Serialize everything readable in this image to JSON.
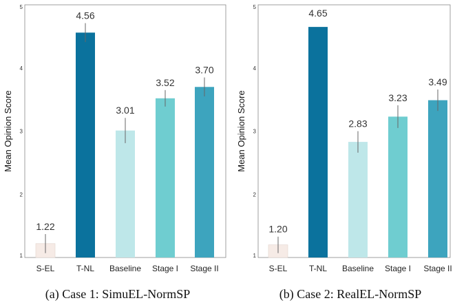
{
  "chart_data": [
    {
      "type": "bar",
      "caption": "(a) Case 1: SimuEL-NormSP",
      "ylabel": "Mean Opinion Score",
      "ylim": [
        1,
        5
      ],
      "yticks": [
        "1",
        "2",
        "3",
        "4",
        "5"
      ],
      "categories": [
        "S-EL",
        "T-NL",
        "Baseline",
        "Stage I",
        "Stage II"
      ],
      "values": [
        1.22,
        4.56,
        3.01,
        3.52,
        3.7
      ],
      "value_labels": [
        "1.22",
        "4.56",
        "3.01",
        "3.52",
        "3.70"
      ],
      "error": [
        0.15,
        0.15,
        0.2,
        0.13,
        0.15
      ],
      "colors": [
        "#f6ebe6",
        "#0b729d",
        "#bee7e9",
        "#6fcdd0",
        "#3da4be"
      ],
      "grid": false
    },
    {
      "type": "bar",
      "caption": "(b) Case 2: RealEL-NormSP",
      "ylabel": "Mean Opinion Score",
      "ylim": [
        1,
        5
      ],
      "yticks": [
        "1",
        "2",
        "3",
        "4",
        "5"
      ],
      "categories": [
        "S-EL",
        "T-NL",
        "Baseline",
        "Stage I",
        "Stage II"
      ],
      "values": [
        1.2,
        4.65,
        2.83,
        3.23,
        3.49
      ],
      "value_labels": [
        "1.20",
        "4.65",
        "2.83",
        "3.23",
        "3.49"
      ],
      "error": [
        0.13,
        0.0,
        0.17,
        0.18,
        0.17
      ],
      "colors": [
        "#f6ebe6",
        "#0b729d",
        "#bee7e9",
        "#6fcdd0",
        "#3da4be"
      ],
      "grid": false
    }
  ]
}
